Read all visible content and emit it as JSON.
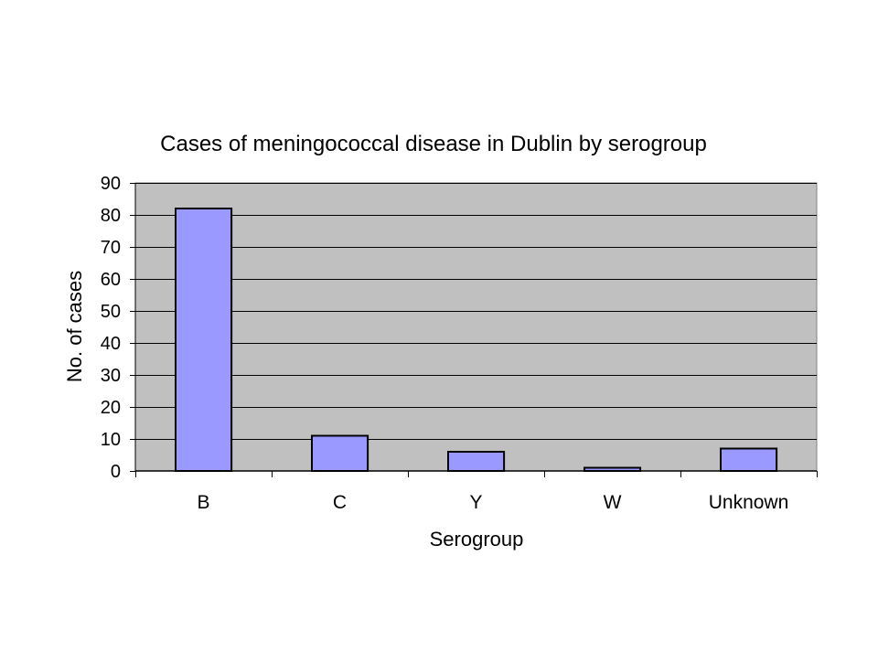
{
  "chart_data": {
    "type": "bar",
    "title": "Cases of meningococcal disease in Dublin by serogroup",
    "xlabel": "Serogroup",
    "ylabel": "No. of cases",
    "categories": [
      "B",
      "C",
      "Y",
      "W",
      "Unknown"
    ],
    "values": [
      82,
      11,
      6,
      1,
      7
    ],
    "ylim": [
      0,
      90
    ],
    "yticks": [
      "0",
      "10",
      "20",
      "30",
      "40",
      "50",
      "60",
      "70",
      "80",
      "90"
    ],
    "grid": true,
    "legend": "none",
    "colors": {
      "plot_background": "#c0c0c0",
      "bar_fill": "#9999ff",
      "bar_stroke": "#000000",
      "gridline": "#000000"
    }
  }
}
